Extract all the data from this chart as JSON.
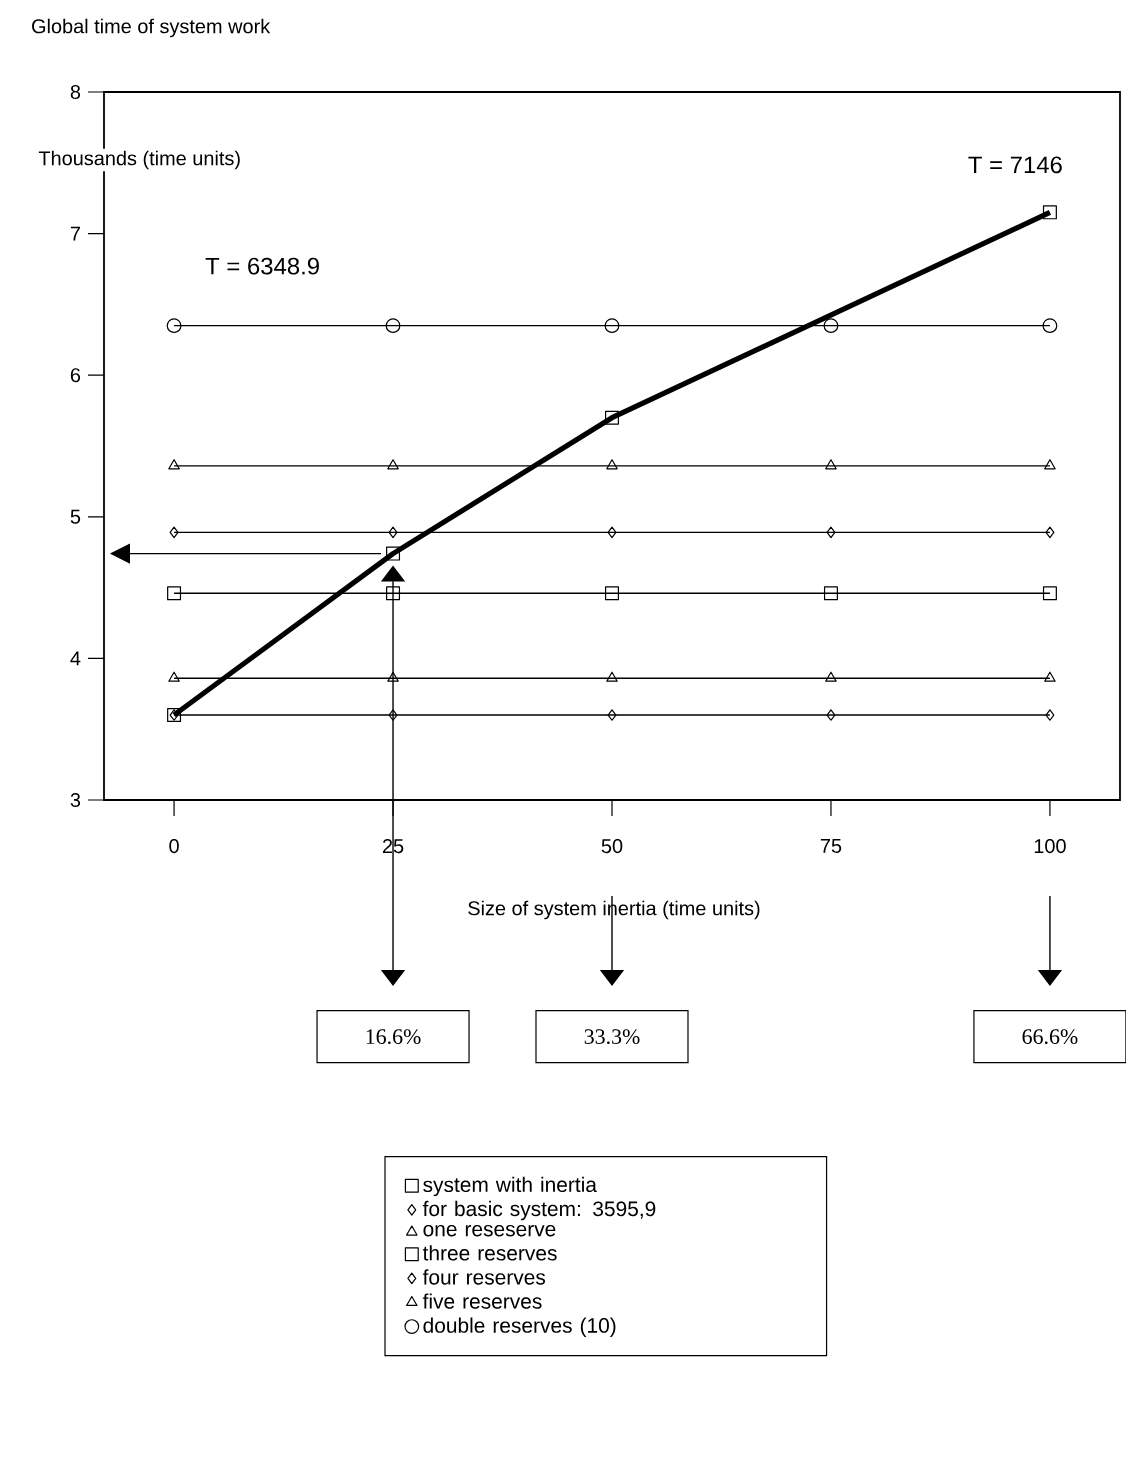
{
  "chart_data": {
    "type": "line",
    "title": "Global time of system work",
    "xlabel": "Size of system inertia (time units)",
    "ylabel": "Thousands (time units)",
    "x": [
      0,
      25,
      50,
      75,
      100
    ],
    "xlim": [
      -8,
      108
    ],
    "xticks": [
      0,
      25,
      50,
      75,
      100
    ],
    "ylim": [
      3,
      8
    ],
    "yticks": [
      3,
      4,
      5,
      6,
      7,
      8
    ],
    "legend": "bottom",
    "grid": false,
    "line_style": "solid",
    "series": [
      {
        "name": "system with inertia",
        "color": "#000000",
        "marker": "square",
        "x": [
          0,
          25,
          50,
          100
        ],
        "values": [
          3.6,
          4.74,
          5.7,
          7.15
        ]
      },
      {
        "name": "for basic system: 3595,9",
        "color": "#000000",
        "marker": "diamond",
        "values": [
          3.6,
          3.6,
          3.6,
          3.6,
          3.6
        ]
      },
      {
        "name": "one reseserve",
        "color": "#000000",
        "marker": "triangle",
        "values": [
          3.86,
          3.86,
          3.86,
          3.86,
          3.86
        ]
      },
      {
        "name": "three reserves",
        "color": "#000000",
        "marker": "square",
        "values": [
          4.46,
          4.46,
          4.46,
          4.46,
          4.46
        ]
      },
      {
        "name": "four reserves",
        "color": "#000000",
        "marker": "diamond",
        "values": [
          4.89,
          4.89,
          4.89,
          4.89,
          4.89
        ]
      },
      {
        "name": "five reserves",
        "color": "#000000",
        "marker": "triangle",
        "values": [
          5.36,
          5.36,
          5.36,
          5.36,
          5.36
        ]
      },
      {
        "name": "double reserves (10)",
        "color": "#000000",
        "marker": "circle",
        "values": [
          6.35,
          6.35,
          6.35,
          6.35,
          6.35
        ]
      }
    ],
    "annotations": [
      {
        "text": "T = 7146",
        "x": 100,
        "y": 7.15
      },
      {
        "text": "T = 6348.9",
        "x": 0,
        "y": 6.35
      },
      "16.6%",
      "33.3%",
      "66.6%"
    ]
  }
}
